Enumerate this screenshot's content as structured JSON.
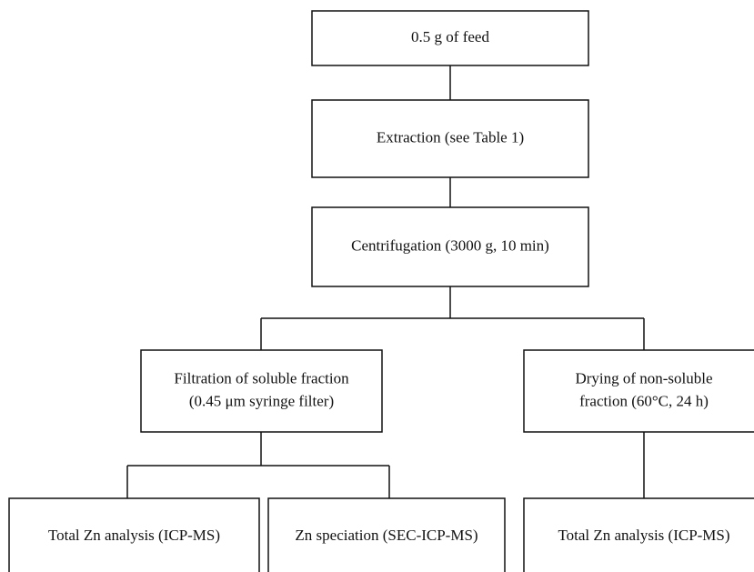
{
  "nodes": [
    {
      "lines": [
        "0.5 g of feed"
      ]
    },
    {
      "lines": [
        "Extraction (see Table 1)"
      ]
    },
    {
      "lines": [
        "Centrifugation (3000 g, 10 min)"
      ]
    },
    {
      "lines": [
        "Filtration of soluble fraction",
        "(0.45 μm syringe filter)"
      ]
    },
    {
      "lines": [
        "Drying of non-soluble",
        "fraction (60°C, 24 h)"
      ]
    },
    {
      "lines": [
        "Total Zn analysis (ICP-MS)"
      ]
    },
    {
      "lines": [
        "Zn speciation (SEC-ICP-MS)"
      ]
    },
    {
      "lines": [
        "Total Zn analysis (ICP-MS)"
      ]
    }
  ]
}
